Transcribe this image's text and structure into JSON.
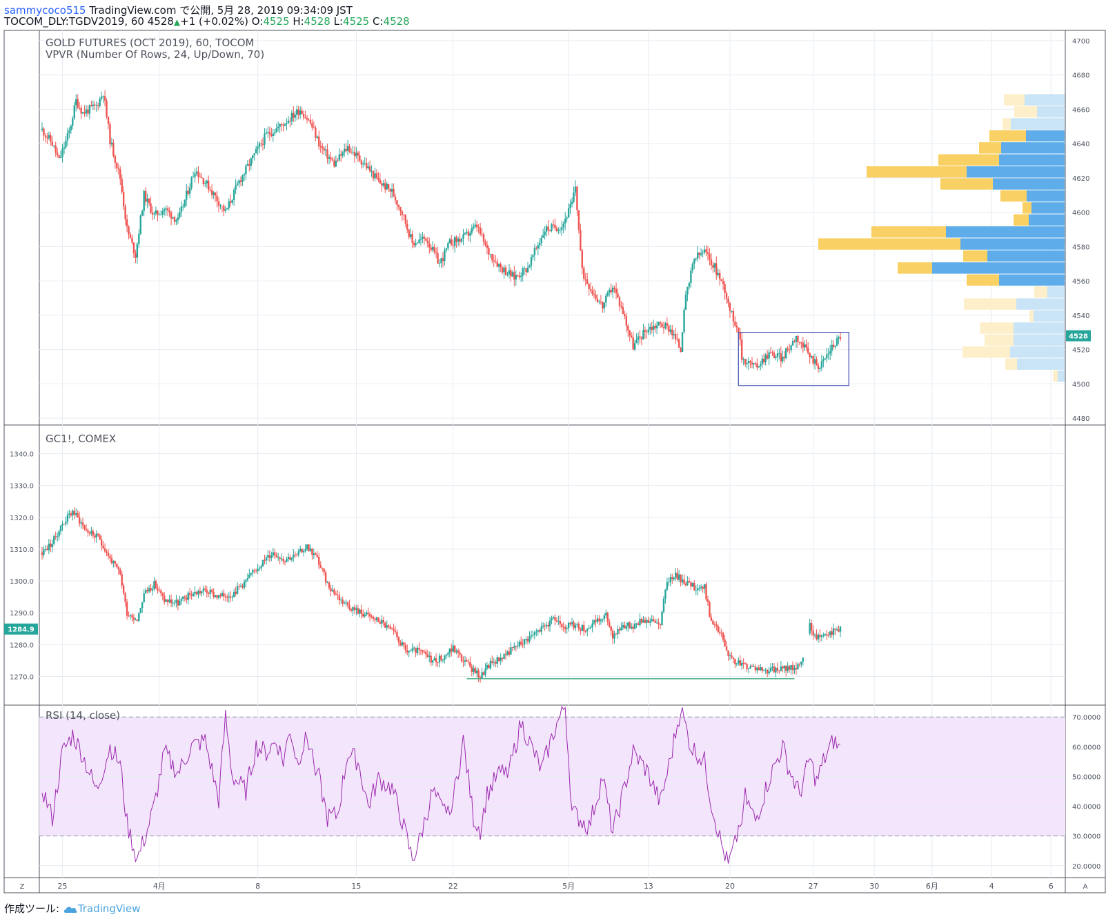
{
  "header": {
    "username": "sammycoco515",
    "published": "TradingView.com で公開, 5月 28, 2019 09:34:09 JST",
    "symbol_line": "TOCOM_DLY:TGDV2019, 60 4528",
    "change": "+1 (+0.02%)",
    "o_label": "O:",
    "o_value": "4525",
    "h_label": "H:",
    "h_value": "4528",
    "l_label": "L:",
    "l_value": "4525",
    "c_label": "C:",
    "c_value": "4528"
  },
  "footer": {
    "label": "作成ツール:",
    "brand": "TradingView"
  },
  "colors": {
    "up": "#26a69a",
    "down": "#ef5350",
    "vpvr_up": "#5eadea",
    "vpvr_down": "#f9d063",
    "vpvr_up_light": "#c9e4f6",
    "vpvr_down_light": "#fdefc9",
    "rsi_line": "#9c27b0",
    "rsi_band": "#f3e5fb",
    "grid": "#e6ecf2",
    "axis_text": "#4c525e",
    "pane_border": "#50535e",
    "box": "#3949ab",
    "hline": "#4caf8a"
  },
  "x_axis": {
    "ticks": [
      {
        "label": "25",
        "bar": 12
      },
      {
        "label": "4月",
        "bar": 69
      },
      {
        "label": "8",
        "bar": 127
      },
      {
        "label": "15",
        "bar": 185
      },
      {
        "label": "22",
        "bar": 242
      },
      {
        "label": "5月",
        "bar": 310
      },
      {
        "label": "13",
        "bar": 357
      },
      {
        "label": "20",
        "bar": 405
      },
      {
        "label": "27",
        "bar": 454
      },
      {
        "label": "30",
        "bar": 490
      },
      {
        "label": "6月",
        "bar": 524
      },
      {
        "label": "4",
        "bar": 559
      },
      {
        "label": "6",
        "bar": 594
      }
    ],
    "left_button": "Z",
    "right_button": "A"
  },
  "chart_data": [
    {
      "type": "candlestick",
      "title": "GOLD FUTURES (OCT 2019), 60, TOCOM",
      "subtitle": "VPVR (Number Of Rows, 24, Up/Down, 70)",
      "y_ticks": [
        4480,
        4500,
        4520,
        4540,
        4560,
        4580,
        4600,
        4620,
        4640,
        4660,
        4680,
        4700
      ],
      "ylim": [
        4476,
        4706
      ],
      "last_price": "4528",
      "grid": true,
      "anchors": [
        [
          0,
          4648
        ],
        [
          6,
          4640
        ],
        [
          10,
          4630
        ],
        [
          16,
          4647
        ],
        [
          20,
          4665
        ],
        [
          24,
          4658
        ],
        [
          32,
          4662
        ],
        [
          36,
          4670
        ],
        [
          40,
          4642
        ],
        [
          46,
          4620
        ],
        [
          50,
          4590
        ],
        [
          55,
          4575
        ],
        [
          60,
          4610
        ],
        [
          66,
          4598
        ],
        [
          72,
          4602
        ],
        [
          80,
          4595
        ],
        [
          90,
          4625
        ],
        [
          98,
          4615
        ],
        [
          108,
          4600
        ],
        [
          116,
          4618
        ],
        [
          126,
          4635
        ],
        [
          132,
          4645
        ],
        [
          140,
          4650
        ],
        [
          152,
          4660
        ],
        [
          158,
          4652
        ],
        [
          164,
          4638
        ],
        [
          172,
          4628
        ],
        [
          180,
          4638
        ],
        [
          190,
          4628
        ],
        [
          198,
          4618
        ],
        [
          206,
          4612
        ],
        [
          212,
          4600
        ],
        [
          218,
          4582
        ],
        [
          226,
          4585
        ],
        [
          234,
          4570
        ],
        [
          240,
          4582
        ],
        [
          248,
          4585
        ],
        [
          256,
          4592
        ],
        [
          262,
          4578
        ],
        [
          270,
          4568
        ],
        [
          278,
          4562
        ],
        [
          286,
          4568
        ],
        [
          296,
          4590
        ],
        [
          306,
          4592
        ],
        [
          312,
          4605
        ],
        [
          314,
          4615
        ],
        [
          318,
          4565
        ],
        [
          324,
          4554
        ],
        [
          330,
          4545
        ],
        [
          336,
          4557
        ],
        [
          342,
          4542
        ],
        [
          348,
          4522
        ],
        [
          356,
          4532
        ],
        [
          364,
          4535
        ],
        [
          370,
          4532
        ],
        [
          376,
          4520
        ],
        [
          378,
          4545
        ],
        [
          384,
          4573
        ],
        [
          390,
          4577
        ],
        [
          396,
          4568
        ],
        [
          402,
          4555
        ],
        [
          406,
          4540
        ],
        [
          410,
          4532
        ],
        [
          412,
          4515
        ],
        [
          420,
          4510
        ],
        [
          428,
          4518
        ],
        [
          436,
          4515
        ],
        [
          444,
          4528
        ],
        [
          452,
          4516
        ],
        [
          458,
          4510
        ],
        [
          464,
          4520
        ],
        [
          470,
          4528
        ]
      ],
      "anchor_note": "bar index, price",
      "box": {
        "bar_start": 410,
        "bar_end": 475,
        "price_top": 4530,
        "price_bottom": 4499
      },
      "vpvr_rows": [
        {
          "price": 4665.5,
          "up": 58,
          "down": 30,
          "highlight": false
        },
        {
          "price": 4658.5,
          "up": 40,
          "down": 33,
          "highlight": false
        },
        {
          "price": 4651.5,
          "up": 78,
          "down": 12,
          "highlight": false
        },
        {
          "price": 4644.5,
          "up": 56,
          "down": 53,
          "highlight": true
        },
        {
          "price": 4637.5,
          "up": 92,
          "down": 32,
          "highlight": true
        },
        {
          "price": 4630.5,
          "up": 95,
          "down": 88,
          "highlight": true
        },
        {
          "price": 4623.5,
          "up": 142,
          "down": 145,
          "highlight": true
        },
        {
          "price": 4616.5,
          "up": 104,
          "down": 76,
          "highlight": true
        },
        {
          "price": 4609.5,
          "up": 55,
          "down": 38,
          "highlight": true
        },
        {
          "price": 4602.5,
          "up": 48,
          "down": 13,
          "highlight": true
        },
        {
          "price": 4595.5,
          "up": 52,
          "down": 22,
          "highlight": true
        },
        {
          "price": 4588.5,
          "up": 172,
          "down": 108,
          "highlight": true
        },
        {
          "price": 4581.5,
          "up": 151,
          "down": 206,
          "highlight": true
        },
        {
          "price": 4574.5,
          "up": 112,
          "down": 35,
          "highlight": true
        },
        {
          "price": 4567.5,
          "up": 192,
          "down": 50,
          "highlight": true
        },
        {
          "price": 4560.5,
          "up": 95,
          "down": 47,
          "highlight": true
        },
        {
          "price": 4553.5,
          "up": 25,
          "down": 19,
          "highlight": false
        },
        {
          "price": 4546.5,
          "up": 70,
          "down": 76,
          "highlight": false
        },
        {
          "price": 4539.5,
          "up": 45,
          "down": 6,
          "highlight": false
        },
        {
          "price": 4532.5,
          "up": 74,
          "down": 49,
          "highlight": false
        },
        {
          "price": 4525.5,
          "up": 74,
          "down": 42,
          "highlight": false
        },
        {
          "price": 4518.5,
          "up": 79,
          "down": 69,
          "highlight": false
        },
        {
          "price": 4511.5,
          "up": 69,
          "down": 17,
          "highlight": false
        },
        {
          "price": 4504.5,
          "up": 10,
          "down": 7,
          "highlight": false
        }
      ]
    },
    {
      "type": "candlestick",
      "title": "GC1!, COMEX",
      "y_ticks": [
        1270.0,
        1280.0,
        1290.0,
        1300.0,
        1310.0,
        1320.0,
        1330.0,
        1340.0
      ],
      "ylim": [
        1261,
        1349
      ],
      "last_price": "1284.9",
      "grid": true,
      "anchors": [
        [
          0,
          1309
        ],
        [
          6,
          1312
        ],
        [
          12,
          1318
        ],
        [
          18,
          1322
        ],
        [
          26,
          1316
        ],
        [
          34,
          1313
        ],
        [
          40,
          1307
        ],
        [
          46,
          1302
        ],
        [
          50,
          1290
        ],
        [
          56,
          1288
        ],
        [
          60,
          1296
        ],
        [
          66,
          1299
        ],
        [
          72,
          1294
        ],
        [
          80,
          1293
        ],
        [
          88,
          1296
        ],
        [
          96,
          1297
        ],
        [
          104,
          1295
        ],
        [
          112,
          1296
        ],
        [
          120,
          1300
        ],
        [
          128,
          1305
        ],
        [
          136,
          1309
        ],
        [
          142,
          1307
        ],
        [
          150,
          1308
        ],
        [
          156,
          1311
        ],
        [
          162,
          1307
        ],
        [
          168,
          1299
        ],
        [
          176,
          1294
        ],
        [
          184,
          1291
        ],
        [
          192,
          1289
        ],
        [
          200,
          1287
        ],
        [
          208,
          1283
        ],
        [
          214,
          1278
        ],
        [
          222,
          1278
        ],
        [
          230,
          1275
        ],
        [
          236,
          1276
        ],
        [
          242,
          1279
        ],
        [
          248,
          1275
        ],
        [
          254,
          1272
        ],
        [
          258,
          1270
        ],
        [
          264,
          1274
        ],
        [
          270,
          1276
        ],
        [
          278,
          1279
        ],
        [
          286,
          1282
        ],
        [
          294,
          1285
        ],
        [
          302,
          1288
        ],
        [
          308,
          1286
        ],
        [
          314,
          1286
        ],
        [
          320,
          1285
        ],
        [
          326,
          1287
        ],
        [
          332,
          1289
        ],
        [
          336,
          1283
        ],
        [
          342,
          1286
        ],
        [
          348,
          1286
        ],
        [
          354,
          1288
        ],
        [
          360,
          1287
        ],
        [
          364,
          1287
        ],
        [
          368,
          1300
        ],
        [
          372,
          1302
        ],
        [
          378,
          1300
        ],
        [
          384,
          1298
        ],
        [
          390,
          1298
        ],
        [
          394,
          1287
        ],
        [
          400,
          1283
        ],
        [
          404,
          1276
        ],
        [
          410,
          1274
        ],
        [
          418,
          1273
        ],
        [
          426,
          1272
        ],
        [
          432,
          1272
        ],
        [
          440,
          1273
        ],
        [
          446,
          1273
        ],
        [
          448,
          1276
        ],
        [
          452,
          1286
        ],
        [
          456,
          1282
        ],
        [
          460,
          1284
        ],
        [
          466,
          1284
        ],
        [
          470,
          1285
        ]
      ],
      "anchor_note": "bar index, price",
      "gap": [
        448,
        452
      ],
      "support_line": {
        "bar_start": 250,
        "bar_end": 443,
        "price": 1269.3
      }
    },
    {
      "type": "line",
      "title": "RSI (14, close)",
      "y_ticks": [
        20.0,
        30.0,
        40.0,
        50.0,
        60.0,
        70.0
      ],
      "tick_format": "4dp",
      "ylim": [
        16,
        74
      ],
      "band": [
        30,
        70
      ],
      "grid": true,
      "anchors": [
        [
          0,
          46
        ],
        [
          6,
          36
        ],
        [
          12,
          58
        ],
        [
          18,
          64
        ],
        [
          24,
          57
        ],
        [
          32,
          45
        ],
        [
          40,
          60
        ],
        [
          46,
          54
        ],
        [
          50,
          34
        ],
        [
          56,
          22
        ],
        [
          62,
          32
        ],
        [
          66,
          40
        ],
        [
          72,
          58
        ],
        [
          80,
          51
        ],
        [
          88,
          60
        ],
        [
          96,
          62
        ],
        [
          104,
          42
        ],
        [
          108,
          70
        ],
        [
          112,
          50
        ],
        [
          120,
          45
        ],
        [
          126,
          60
        ],
        [
          132,
          58
        ],
        [
          138,
          62
        ],
        [
          142,
          55
        ],
        [
          146,
          66
        ],
        [
          150,
          55
        ],
        [
          156,
          63
        ],
        [
          162,
          52
        ],
        [
          168,
          36
        ],
        [
          174,
          37
        ],
        [
          180,
          58
        ],
        [
          186,
          55
        ],
        [
          192,
          40
        ],
        [
          198,
          49
        ],
        [
          206,
          46
        ],
        [
          212,
          35
        ],
        [
          218,
          22
        ],
        [
          222,
          28
        ],
        [
          230,
          45
        ],
        [
          236,
          38
        ],
        [
          242,
          42
        ],
        [
          248,
          62
        ],
        [
          254,
          36
        ],
        [
          258,
          32
        ],
        [
          262,
          44
        ],
        [
          268,
          50
        ],
        [
          276,
          54
        ],
        [
          282,
          68
        ],
        [
          288,
          60
        ],
        [
          294,
          52
        ],
        [
          302,
          66
        ],
        [
          308,
          74
        ],
        [
          312,
          38
        ],
        [
          316,
          36
        ],
        [
          322,
          33
        ],
        [
          330,
          50
        ],
        [
          336,
          31
        ],
        [
          342,
          44
        ],
        [
          348,
          58
        ],
        [
          356,
          52
        ],
        [
          364,
          41
        ],
        [
          370,
          56
        ],
        [
          376,
          73
        ],
        [
          382,
          60
        ],
        [
          390,
          55
        ],
        [
          394,
          41
        ],
        [
          400,
          27
        ],
        [
          404,
          20
        ],
        [
          408,
          27
        ],
        [
          414,
          43
        ],
        [
          420,
          35
        ],
        [
          428,
          49
        ],
        [
          436,
          60
        ],
        [
          440,
          52
        ],
        [
          446,
          44
        ],
        [
          452,
          56
        ],
        [
          456,
          48
        ],
        [
          460,
          55
        ],
        [
          466,
          62
        ],
        [
          470,
          59
        ]
      ],
      "anchor_note": "bar index, value"
    }
  ]
}
